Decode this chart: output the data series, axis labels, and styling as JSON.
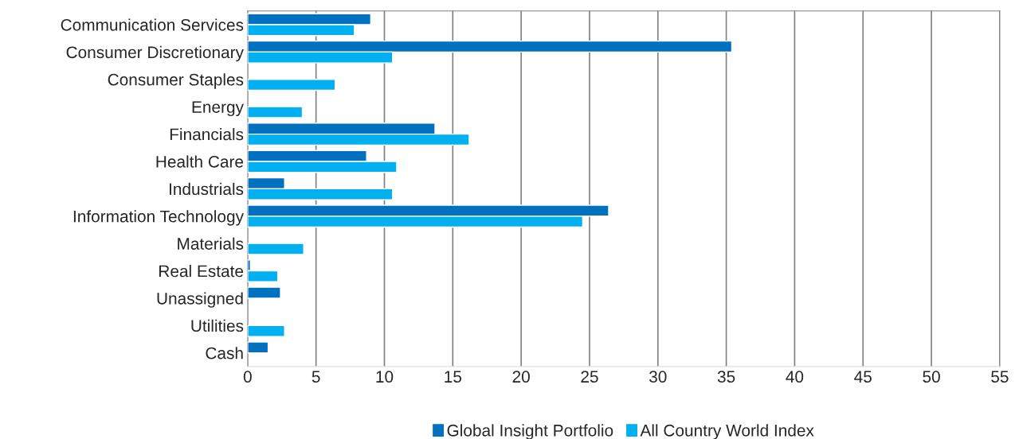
{
  "chart_data": {
    "type": "bar",
    "orientation": "horizontal",
    "categories": [
      "Communication Services",
      "Consumer Discretionary",
      "Consumer Staples",
      "Energy",
      "Financials",
      "Health Care",
      "Industrials",
      "Information Technology",
      "Materials",
      "Real Estate",
      "Unassigned",
      "Utilities",
      "Cash"
    ],
    "series": [
      {
        "name": "Global Insight Portfolio",
        "color": "#0070c0",
        "values": [
          9.0,
          35.4,
          null,
          null,
          13.7,
          8.7,
          2.7,
          26.4,
          null,
          0.2,
          2.4,
          null,
          1.5
        ]
      },
      {
        "name": "All Country World Index",
        "color": "#00b0f0",
        "values": [
          7.8,
          10.6,
          6.4,
          4.0,
          16.2,
          10.9,
          10.6,
          24.5,
          4.1,
          2.2,
          null,
          2.7,
          null
        ]
      }
    ],
    "xlim": [
      0,
      55
    ],
    "xticks": [
      0,
      5,
      10,
      15,
      20,
      25,
      30,
      35,
      40,
      45,
      50,
      55
    ],
    "grid": "x",
    "legend": "bottom"
  }
}
